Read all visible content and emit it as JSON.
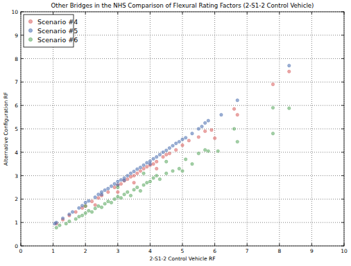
{
  "chart_data": {
    "type": "scatter",
    "title": "Other Bridges in the NHS Comparison of Flexural Rating Factors (2-S1-2 Control Vehicle)",
    "x_label": "2-S1-2 Control Vehicle RF",
    "y_label": "Alternative Configuration RF",
    "xlim": [
      0,
      10
    ],
    "ylim": [
      0,
      10
    ],
    "xticks": [
      0,
      1,
      2,
      3,
      4,
      5,
      6,
      7,
      8,
      9,
      10
    ],
    "yticks": [
      0,
      1,
      2,
      3,
      4,
      5,
      6,
      7,
      8,
      9,
      10
    ],
    "grid": true,
    "legend": "upper-left",
    "marker": "circle",
    "series": [
      {
        "name": "Scenario #4",
        "color": "#d9605f",
        "x": [
          1.1,
          1.3,
          1.5,
          1.7,
          1.9,
          2.0,
          2.2,
          2.4,
          2.5,
          2.7,
          2.9,
          3.0,
          3.1,
          3.2,
          3.3,
          3.4,
          3.5,
          3.6,
          3.7,
          3.8,
          3.9,
          4.0,
          4.1,
          4.2,
          4.4,
          4.5,
          4.6,
          4.8,
          5.0,
          5.2,
          5.5,
          5.7,
          5.9,
          6.0,
          6.6,
          6.7,
          7.8,
          8.3,
          3.0,
          3.5,
          4.2,
          2.3
        ],
        "values": [
          0.95,
          1.12,
          1.3,
          1.45,
          1.62,
          1.7,
          1.9,
          2.05,
          2.15,
          2.3,
          2.5,
          2.6,
          2.65,
          2.78,
          2.85,
          2.95,
          3.0,
          3.1,
          3.2,
          3.3,
          3.38,
          3.45,
          3.5,
          3.6,
          3.8,
          3.9,
          3.95,
          4.1,
          4.3,
          4.5,
          4.65,
          4.9,
          4.95,
          4.6,
          5.85,
          5.6,
          6.9,
          7.45,
          2.3,
          2.7,
          3.3,
          1.75
        ]
      },
      {
        "name": "Scenario #5",
        "color": "#4a6fb0",
        "x": [
          1.05,
          1.1,
          1.3,
          1.5,
          1.6,
          1.8,
          1.9,
          2.0,
          2.1,
          2.3,
          2.4,
          2.5,
          2.6,
          2.7,
          2.8,
          2.9,
          3.0,
          3.1,
          3.2,
          3.3,
          3.4,
          3.5,
          3.6,
          3.7,
          3.8,
          3.9,
          4.0,
          4.1,
          4.2,
          4.3,
          4.4,
          4.5,
          4.6,
          4.7,
          4.8,
          4.9,
          5.0,
          5.1,
          5.3,
          5.5,
          5.6,
          5.7,
          5.8,
          6.2,
          6.7,
          8.3,
          2.5,
          3.2,
          4.0,
          3.0
        ],
        "values": [
          0.95,
          1.0,
          1.18,
          1.35,
          1.45,
          1.62,
          1.72,
          1.85,
          1.92,
          2.08,
          2.2,
          2.3,
          2.38,
          2.45,
          2.55,
          2.65,
          2.75,
          2.82,
          2.9,
          3.0,
          3.1,
          3.18,
          3.28,
          3.35,
          3.45,
          3.55,
          3.62,
          3.72,
          3.8,
          3.9,
          4.0,
          4.08,
          4.18,
          4.28,
          4.38,
          4.45,
          4.55,
          4.62,
          4.8,
          5.0,
          5.1,
          5.25,
          5.35,
          5.6,
          6.22,
          7.7,
          2.2,
          2.8,
          3.5,
          2.6
        ]
      },
      {
        "name": "Scenario #6",
        "color": "#5aa85e",
        "x": [
          1.1,
          1.2,
          1.4,
          1.5,
          1.7,
          1.8,
          1.9,
          2.0,
          2.1,
          2.2,
          2.3,
          2.4,
          2.5,
          2.6,
          2.7,
          2.8,
          2.9,
          3.0,
          3.1,
          3.2,
          3.3,
          3.4,
          3.5,
          3.6,
          3.7,
          3.8,
          3.9,
          4.0,
          4.1,
          4.2,
          4.3,
          4.5,
          4.7,
          4.9,
          5.0,
          5.1,
          5.3,
          5.5,
          5.7,
          5.8,
          6.1,
          6.6,
          6.7,
          7.8,
          7.8,
          8.3,
          3.0,
          4.5,
          2.0,
          3.8
        ],
        "values": [
          0.78,
          0.88,
          0.95,
          1.05,
          1.15,
          1.25,
          1.3,
          1.4,
          1.5,
          1.45,
          1.6,
          1.7,
          1.65,
          1.8,
          1.9,
          1.85,
          2.0,
          2.1,
          2.05,
          2.2,
          2.3,
          2.15,
          2.4,
          2.5,
          2.35,
          2.6,
          2.7,
          2.75,
          2.9,
          3.0,
          2.85,
          3.1,
          3.2,
          3.3,
          3.2,
          3.7,
          3.5,
          3.95,
          4.1,
          4.05,
          4.05,
          5.0,
          4.45,
          5.9,
          4.8,
          5.88,
          2.5,
          3.6,
          1.7,
          3.1
        ]
      }
    ]
  }
}
